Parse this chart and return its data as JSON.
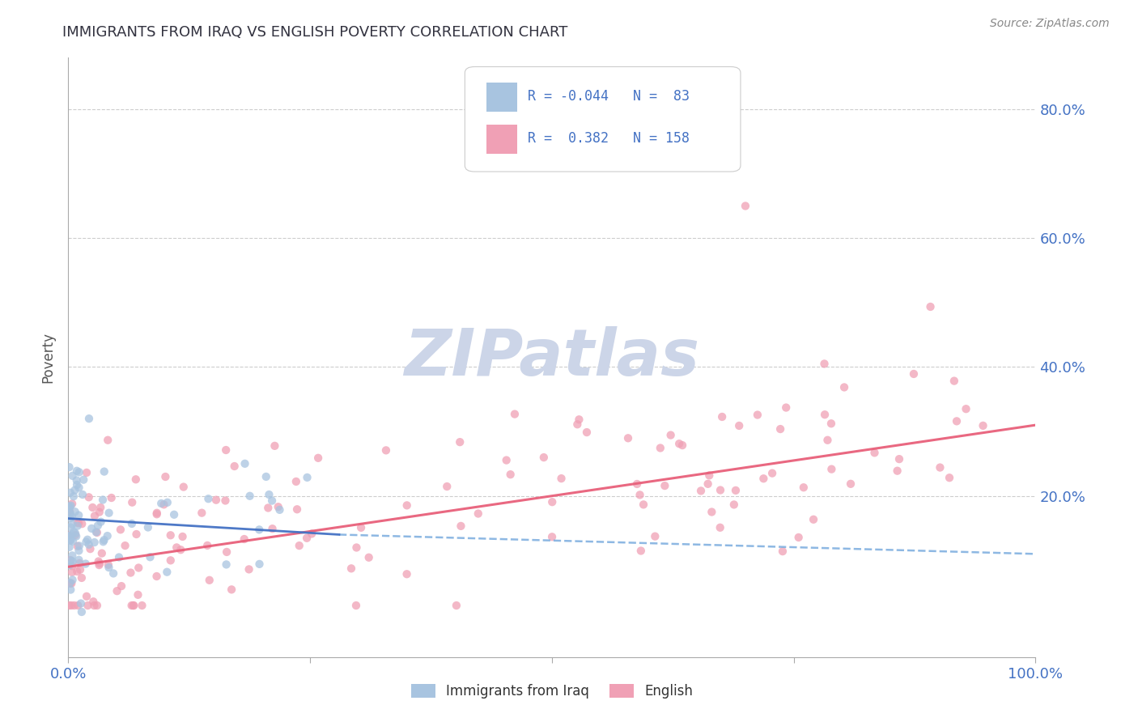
{
  "title": "IMMIGRANTS FROM IRAQ VS ENGLISH POVERTY CORRELATION CHART",
  "source": "Source: ZipAtlas.com",
  "ylabel": "Poverty",
  "xlim": [
    0,
    1
  ],
  "ylim": [
    -0.05,
    0.88
  ],
  "ytick_values": [
    0.2,
    0.4,
    0.6,
    0.8
  ],
  "color_blue": "#a8c4e0",
  "color_pink": "#f0a0b5",
  "color_blue_solid": "#4472c4",
  "color_blue_dashed": "#7aacde",
  "color_pink_line": "#e8607a",
  "color_text_blue": "#4472c4",
  "color_dark": "#333340",
  "watermark_color": "#ccd5e8",
  "background_color": "#ffffff",
  "grid_color": "#c8c8c8",
  "source_color": "#888888",
  "blue_seed": 42,
  "pink_seed": 99
}
